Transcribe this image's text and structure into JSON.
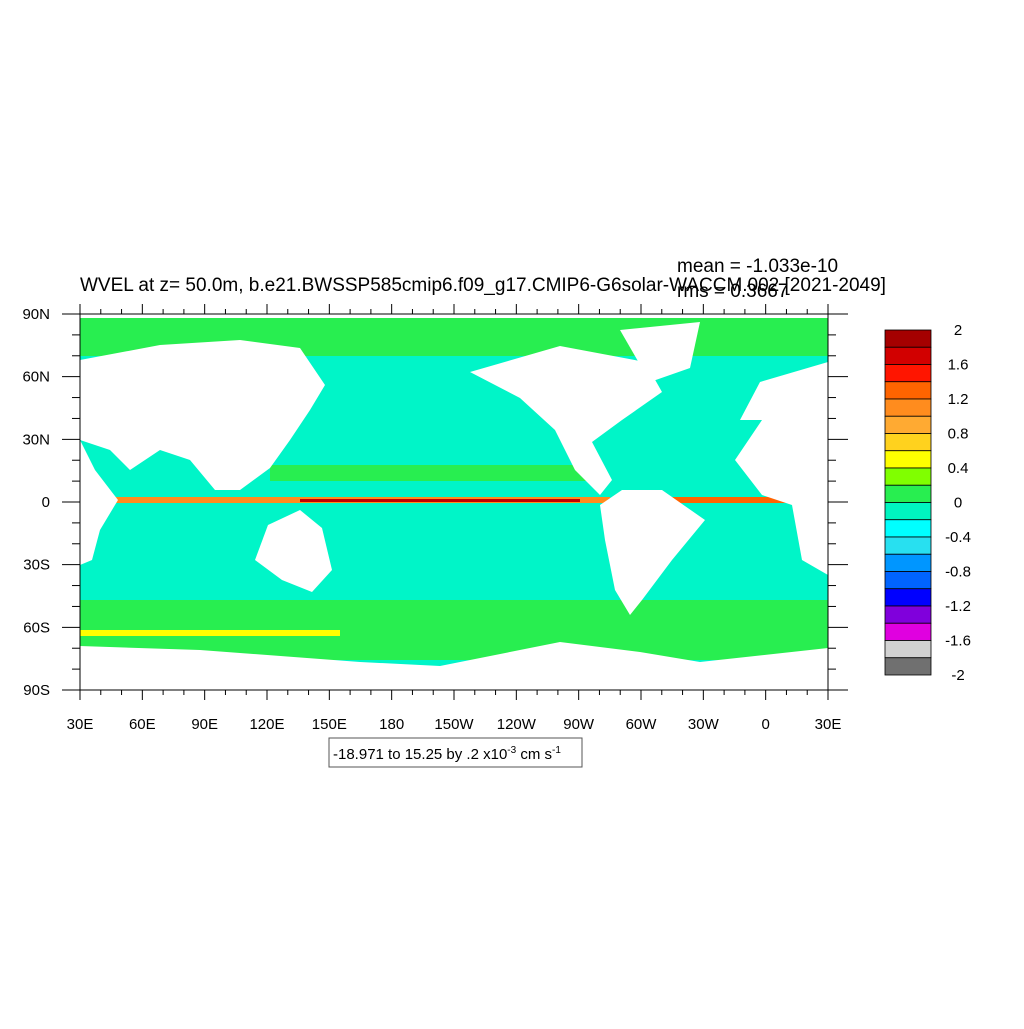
{
  "title": "WVEL at z=  50.0m, b.e21.BWSSP585cmip6.f09_g17.CMIP6-G6solar-WACCM.002 [2021-2049]",
  "stats": [
    "mean = -1.033e-10",
    "rms = 0.3667"
  ],
  "x_tick_labels": [
    "30E",
    "60E",
    "90E",
    "120E",
    "150E",
    "180",
    "150W",
    "120W",
    "90W",
    "60W",
    "30W",
    "0",
    "30E"
  ],
  "y_tick_labels": [
    "90N",
    "60N",
    "30N",
    "0",
    "30S",
    "60S",
    "90S"
  ],
  "colorbar": {
    "colors": [
      "#a50000",
      "#d20000",
      "#ff1500",
      "#ff6400",
      "#ff8c1e",
      "#ffaa32",
      "#ffd21e",
      "#ffff00",
      "#80ff00",
      "#28ee50",
      "#00f5c0",
      "#00ffff",
      "#28e0f0",
      "#0096ff",
      "#0064ff",
      "#0000ff",
      "#8000dc",
      "#e000e0",
      "#d2d2d2",
      "#707070"
    ],
    "labels": [
      "2",
      "1.6",
      "1.2",
      "0.8",
      "0.4",
      "0",
      "-0.4",
      "-0.8",
      "-1.2",
      "-1.6",
      "-2"
    ]
  },
  "info": {
    "text": "-18.971 to 15.25 by .2 x10",
    "exponent": "-3",
    "unit": " cm s",
    "unit_exponent": "-1"
  }
}
